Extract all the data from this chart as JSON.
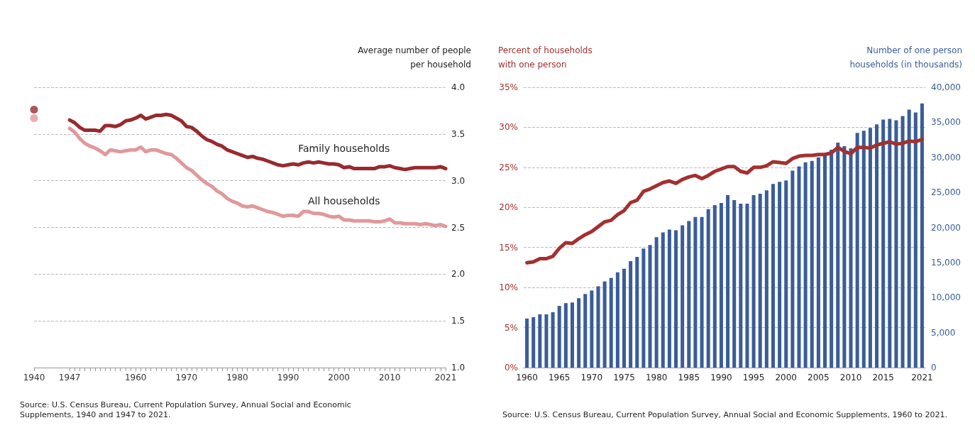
{
  "chart_data": [
    {
      "type": "line",
      "ylabel": "Average number of people\nper household",
      "xlim": [
        1940,
        2021
      ],
      "xticks": [
        1940,
        1947,
        {
          "value": 1948,
          "label": null
        },
        {
          "value": 1949,
          "label": null
        },
        {
          "value": 1950,
          "label": null
        },
        {
          "value": 1951,
          "label": null
        },
        {
          "value": 1952,
          "label": null
        },
        {
          "value": 1953,
          "label": null
        },
        {
          "value": 1954,
          "label": null
        },
        {
          "value": 1955,
          "label": null
        },
        {
          "value": 1956,
          "label": null
        },
        {
          "value": 1957,
          "label": null
        },
        {
          "value": 1958,
          "label": null
        },
        {
          "value": 1959,
          "label": null
        },
        1960,
        {
          "value": 1961,
          "label": null
        },
        {
          "value": 1962,
          "label": null
        },
        {
          "value": 1963,
          "label": null
        },
        {
          "value": 1964,
          "label": null
        },
        {
          "value": 1965,
          "label": null
        },
        {
          "value": 1966,
          "label": null
        },
        {
          "value": 1967,
          "label": null
        },
        {
          "value": 1968,
          "label": null
        },
        {
          "value": 1969,
          "label": null
        },
        1970,
        {
          "value": 1971,
          "label": null
        },
        {
          "value": 1972,
          "label": null
        },
        {
          "value": 1973,
          "label": null
        },
        {
          "value": 1974,
          "label": null
        },
        {
          "value": 1975,
          "label": null
        },
        {
          "value": 1976,
          "label": null
        },
        {
          "value": 1977,
          "label": null
        },
        {
          "value": 1978,
          "label": null
        },
        {
          "value": 1979,
          "label": null
        },
        1980,
        {
          "value": 1981,
          "label": null
        },
        {
          "value": 1982,
          "label": null
        },
        {
          "value": 1983,
          "label": null
        },
        {
          "value": 1984,
          "label": null
        },
        {
          "value": 1985,
          "label": null
        },
        {
          "value": 1986,
          "label": null
        },
        {
          "value": 1987,
          "label": null
        },
        {
          "value": 1988,
          "label": null
        },
        {
          "value": 1989,
          "label": null
        },
        1990,
        {
          "value": 1991,
          "label": null
        },
        {
          "value": 1992,
          "label": null
        },
        {
          "value": 1993,
          "label": null
        },
        {
          "value": 1994,
          "label": null
        },
        {
          "value": 1995,
          "label": null
        },
        {
          "value": 1996,
          "label": null
        },
        {
          "value": 1997,
          "label": null
        },
        {
          "value": 1998,
          "label": null
        },
        {
          "value": 1999,
          "label": null
        },
        2000,
        {
          "value": 2001,
          "label": null
        },
        {
          "value": 2002,
          "label": null
        },
        {
          "value": 2003,
          "label": null
        },
        {
          "value": 2004,
          "label": null
        },
        {
          "value": 2005,
          "label": null
        },
        {
          "value": 2006,
          "label": null
        },
        {
          "value": 2007,
          "label": null
        },
        {
          "value": 2008,
          "label": null
        },
        {
          "value": 2009,
          "label": null
        },
        2010,
        {
          "value": 2011,
          "label": null
        },
        {
          "value": 2012,
          "label": null
        },
        {
          "value": 2013,
          "label": null
        },
        {
          "value": 2014,
          "label": null
        },
        {
          "value": 2015,
          "label": null
        },
        {
          "value": 2016,
          "label": null
        },
        {
          "value": 2017,
          "label": null
        },
        {
          "value": 2018,
          "label": null
        },
        {
          "value": 2019,
          "label": null
        },
        {
          "value": 2020,
          "label": null
        },
        2021
      ],
      "ylim": [
        1,
        4
      ],
      "yticks": [
        {
          "value": 1,
          "label": "1.0"
        },
        1.5,
        {
          "value": 2,
          "label": "2.0"
        },
        2.5,
        {
          "value": 3,
          "label": "3.0"
        },
        3.5,
        {
          "value": 4,
          "label": "4.0"
        }
      ],
      "grid": "y",
      "legend": false,
      "marker": "none",
      "line_style": "solid",
      "series": [
        {
          "name": "Family households",
          "color": "#982a2e",
          "x": [
            1947,
            1948,
            1949,
            1950,
            1951,
            1952,
            1953,
            1954,
            1955,
            1956,
            1957,
            1958,
            1959,
            1960,
            1961,
            1962,
            1963,
            1964,
            1965,
            1966,
            1967,
            1968,
            1969,
            1970,
            1971,
            1972,
            1973,
            1974,
            1975,
            1976,
            1977,
            1978,
            1979,
            1980,
            1981,
            1982,
            1983,
            1984,
            1985,
            1986,
            1987,
            1988,
            1989,
            1990,
            1991,
            1992,
            1993,
            1994,
            1995,
            1996,
            1997,
            1998,
            1999,
            2000,
            2001,
            2002,
            2003,
            2004,
            2005,
            2006,
            2007,
            2008,
            2009,
            2010,
            2011,
            2012,
            2013,
            2014,
            2015,
            2016,
            2017,
            2018,
            2019,
            2020,
            2021
          ],
          "values": [
            3.65,
            3.62,
            3.57,
            3.54,
            3.54,
            3.54,
            3.53,
            3.59,
            3.59,
            3.58,
            3.6,
            3.64,
            3.65,
            3.67,
            3.7,
            3.66,
            3.68,
            3.7,
            3.7,
            3.71,
            3.7,
            3.67,
            3.64,
            3.58,
            3.57,
            3.53,
            3.48,
            3.44,
            3.42,
            3.39,
            3.37,
            3.33,
            3.31,
            3.29,
            3.27,
            3.25,
            3.26,
            3.24,
            3.23,
            3.21,
            3.19,
            3.17,
            3.16,
            3.17,
            3.18,
            3.17,
            3.19,
            3.2,
            3.19,
            3.2,
            3.19,
            3.18,
            3.18,
            3.17,
            3.14,
            3.15,
            3.13,
            3.13,
            3.13,
            3.13,
            3.13,
            3.15,
            3.15,
            3.16,
            3.14,
            3.13,
            3.12,
            3.13,
            3.14,
            3.14,
            3.14,
            3.14,
            3.14,
            3.15,
            3.13
          ]
        },
        {
          "name": "All households",
          "color": "#e0999b",
          "x": [
            1947,
            1948,
            1949,
            1950,
            1951,
            1952,
            1953,
            1954,
            1955,
            1956,
            1957,
            1958,
            1959,
            1960,
            1961,
            1962,
            1963,
            1964,
            1965,
            1966,
            1967,
            1968,
            1969,
            1970,
            1971,
            1972,
            1973,
            1974,
            1975,
            1976,
            1977,
            1978,
            1979,
            1980,
            1981,
            1982,
            1983,
            1984,
            1985,
            1986,
            1987,
            1988,
            1989,
            1990,
            1991,
            1992,
            1993,
            1994,
            1995,
            1996,
            1997,
            1998,
            1999,
            2000,
            2001,
            2002,
            2003,
            2004,
            2005,
            2006,
            2007,
            2008,
            2009,
            2010,
            2011,
            2012,
            2013,
            2014,
            2015,
            2016,
            2017,
            2018,
            2019,
            2020,
            2021
          ],
          "values": [
            3.56,
            3.52,
            3.45,
            3.4,
            3.37,
            3.35,
            3.32,
            3.28,
            3.33,
            3.32,
            3.31,
            3.32,
            3.33,
            3.33,
            3.36,
            3.31,
            3.33,
            3.33,
            3.31,
            3.29,
            3.28,
            3.24,
            3.19,
            3.14,
            3.11,
            3.06,
            3.01,
            2.97,
            2.94,
            2.89,
            2.86,
            2.81,
            2.78,
            2.76,
            2.73,
            2.72,
            2.73,
            2.71,
            2.69,
            2.67,
            2.66,
            2.64,
            2.62,
            2.63,
            2.63,
            2.62,
            2.67,
            2.67,
            2.65,
            2.65,
            2.64,
            2.62,
            2.61,
            2.62,
            2.58,
            2.58,
            2.57,
            2.57,
            2.57,
            2.57,
            2.56,
            2.56,
            2.57,
            2.59,
            2.55,
            2.55,
            2.54,
            2.54,
            2.54,
            2.53,
            2.54,
            2.53,
            2.52,
            2.53,
            2.51
          ]
        },
        {
          "type": "scatter",
          "marker": "circle",
          "color": "#982a2e",
          "x": [
            1940
          ],
          "values": [
            3.76
          ]
        },
        {
          "type": "scatter",
          "marker": "circle",
          "color": "#e0999b",
          "x": [
            1940
          ],
          "values": [
            3.67
          ]
        }
      ],
      "annotations": [
        "Source: U.S. Census Bureau, Current Population Survey, Annual Social and Economic\nSupplements, 1940 and 1947 to 2021."
      ]
    },
    {
      "type": "bar",
      "ylabel": "Percent of households\nwith one person",
      "y2label": "Number of one person\nhouseholds (in thousands)",
      "categories": [
        "1960",
        null,
        null,
        null,
        null,
        "1965",
        null,
        null,
        null,
        null,
        "1970",
        null,
        null,
        null,
        null,
        "1975",
        null,
        null,
        null,
        null,
        "1980",
        null,
        null,
        null,
        null,
        "1985",
        null,
        null,
        null,
        null,
        "1990",
        null,
        null,
        null,
        null,
        "1995",
        null,
        null,
        null,
        null,
        "2000",
        null,
        null,
        null,
        null,
        "2005",
        null,
        null,
        null,
        null,
        "2010",
        null,
        null,
        null,
        null,
        "2015",
        null,
        null,
        null,
        null,
        null,
        "2021"
      ],
      "ylim": [
        0,
        35
      ],
      "yticks": [
        {
          "value": 0,
          "label": "0%"
        },
        {
          "value": 5,
          "label": "5%"
        },
        {
          "value": 10,
          "label": "10%"
        },
        {
          "value": 15,
          "label": "15%"
        },
        {
          "value": 20,
          "label": "20%"
        },
        {
          "value": 25,
          "label": "25%"
        },
        {
          "value": 30,
          "label": "30%"
        },
        {
          "value": 35,
          "label": "35%"
        }
      ],
      "y2lim": [
        0,
        40000
      ],
      "y2ticks": [
        0,
        {
          "value": 5000,
          "label": "5,000"
        },
        {
          "value": 10000,
          "label": "10,000"
        },
        {
          "value": 15000,
          "label": "15,000"
        },
        {
          "value": 20000,
          "label": "20,000"
        },
        {
          "value": 25000,
          "label": "25,000"
        },
        {
          "value": 30000,
          "label": "30,000"
        },
        {
          "value": 35000,
          "label": "35,000"
        },
        {
          "value": 40000,
          "label": "40,000"
        }
      ],
      "grid": "y",
      "legend": false,
      "marker": "none",
      "line_style": "solid",
      "series": [
        {
          "axis": "y2",
          "color": "#3a5d99",
          "values": [
            7000,
            7200,
            7600,
            7600,
            7900,
            8800,
            9200,
            9300,
            9900,
            10500,
            11000,
            11600,
            12300,
            12800,
            13600,
            14100,
            15200,
            15800,
            17000,
            17500,
            18600,
            19300,
            19700,
            19600,
            20300,
            20900,
            21500,
            21500,
            22600,
            23200,
            23500,
            24600,
            23900,
            23400,
            23400,
            24600,
            24800,
            25300,
            26200,
            26500,
            26700,
            28100,
            28700,
            29300,
            29500,
            30000,
            30200,
            31100,
            32100,
            31600,
            31300,
            33500,
            33800,
            34200,
            34700,
            35400,
            35500,
            35300,
            35900,
            36800,
            36400,
            37700
          ]
        },
        {
          "type": "line",
          "color": "#a3302f",
          "values": [
            13.1,
            13.2,
            13.6,
            13.6,
            13.9,
            14.9,
            15.6,
            15.5,
            16.1,
            16.6,
            17.0,
            17.6,
            18.2,
            18.4,
            19.1,
            19.6,
            20.6,
            20.9,
            22.0,
            22.3,
            22.7,
            23.1,
            23.3,
            23.0,
            23.5,
            23.8,
            24.0,
            23.6,
            24.0,
            24.5,
            24.8,
            25.1,
            25.1,
            24.5,
            24.3,
            25.0,
            25.0,
            25.2,
            25.7,
            25.6,
            25.5,
            26.1,
            26.4,
            26.5,
            26.5,
            26.6,
            26.6,
            26.8,
            27.5,
            27.0,
            26.7,
            27.5,
            27.5,
            27.4,
            27.8,
            28.0,
            28.2,
            27.9,
            28.0,
            28.3,
            28.2,
            28.5
          ]
        }
      ],
      "annotations": [
        "Source: U.S. Census Bureau, Current Population Survey, Annual Social and Economic Supplements, 1960 to 2021."
      ]
    }
  ]
}
